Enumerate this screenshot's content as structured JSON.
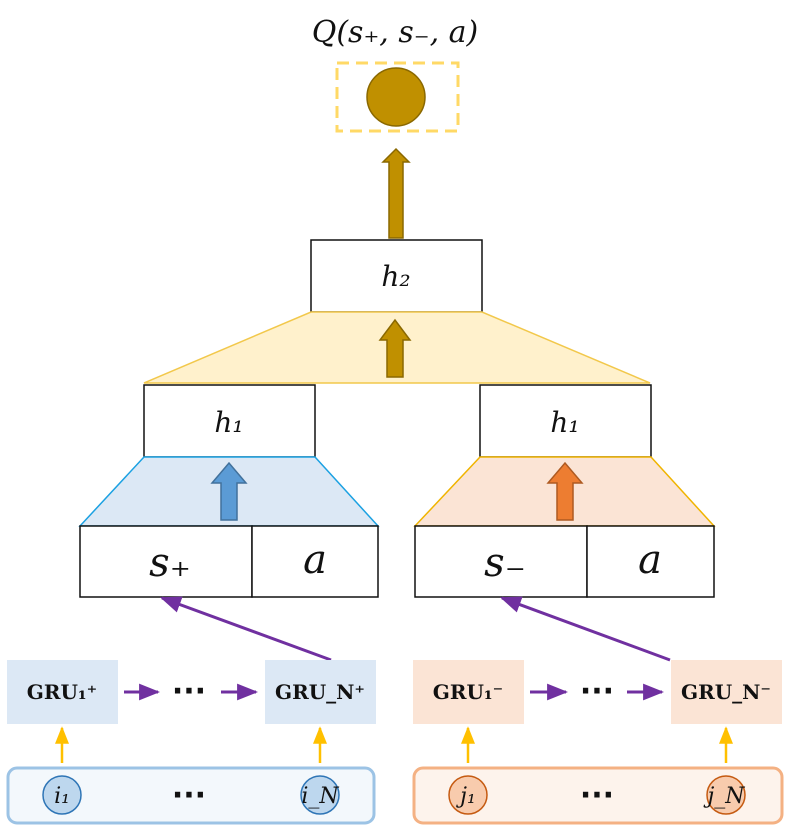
{
  "output": {
    "label": "Q(s₊, s₋, a)"
  },
  "hidden": {
    "h2": "h₂",
    "h1_left": "h₁",
    "h1_right": "h₁"
  },
  "inputs": {
    "left": {
      "state": "s₊",
      "action": "a"
    },
    "right": {
      "state": "s₋",
      "action": "a"
    }
  },
  "gru": {
    "positive": {
      "first": "GRU₁⁺",
      "last": "GRU_N⁺",
      "ellipsis": "···"
    },
    "negative": {
      "first": "GRU₁⁻",
      "last": "GRU_N⁻",
      "ellipsis": "···"
    }
  },
  "items": {
    "positive": {
      "first": "i₁",
      "last": "i_N",
      "ellipsis": "···"
    },
    "negative": {
      "first": "j₁",
      "last": "j_N",
      "ellipsis": "···"
    }
  },
  "colors": {
    "gold": "#C09000",
    "gold_dark": "#8A6800",
    "dashed_box": "#FFD966",
    "yellow_fill": "#FFF1CC",
    "yellow_stroke": "#F2C84B",
    "blue_fill": "#DCE8F5",
    "blue_stroke": "#1BA1E2",
    "blue_arrow": "#5B9BD5",
    "orange_fill": "#FBE4D5",
    "orange_stroke": "#F0B400",
    "orange_arrow": "#ED7D31",
    "purple": "#7030A0",
    "arrow_yellow": "#FFC000"
  }
}
